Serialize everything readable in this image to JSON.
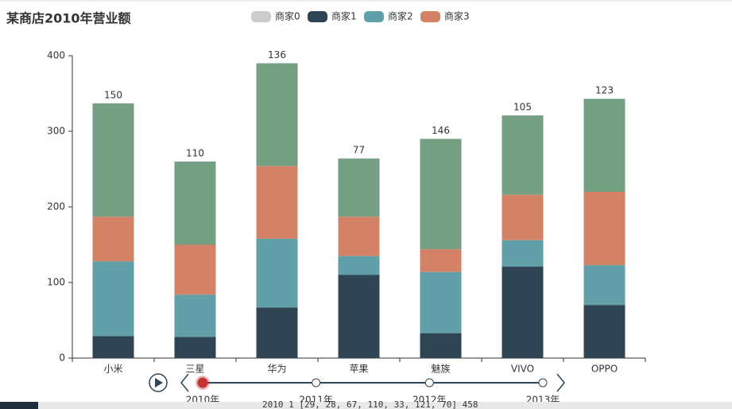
{
  "chart_data": {
    "type": "stacked-bar",
    "title": "某商店2010年营业额",
    "categories": [
      "小米",
      "三星",
      "华为",
      "苹果",
      "魅族",
      "VIVO",
      "OPPO"
    ],
    "series": [
      {
        "name": "商家0",
        "color": "#cccccc",
        "hidden": true
      },
      {
        "name": "商家1",
        "color": "#2f4554",
        "values": [
          29,
          28,
          67,
          110,
          33,
          121,
          70
        ]
      },
      {
        "name": "商家2",
        "color": "#61a0a8",
        "values": [
          99,
          56,
          91,
          25,
          81,
          35,
          53
        ]
      },
      {
        "name": "商家3",
        "color": "#d48265",
        "values": [
          59,
          66,
          96,
          52,
          30,
          60,
          97
        ]
      },
      {
        "color": "#749f83",
        "values": [
          150,
          110,
          136,
          77,
          146,
          105,
          123
        ],
        "show_labels": true
      }
    ],
    "ylim": [
      0,
      400
    ],
    "yticks": [
      0,
      100,
      200,
      300,
      400
    ],
    "timeline": {
      "labels": [
        "2010年",
        "2011年",
        "2012年",
        "2013年"
      ],
      "current": 0
    }
  },
  "console_text": "2010 1 [29, 28, 67, 110, 33, 121, 70] 458"
}
